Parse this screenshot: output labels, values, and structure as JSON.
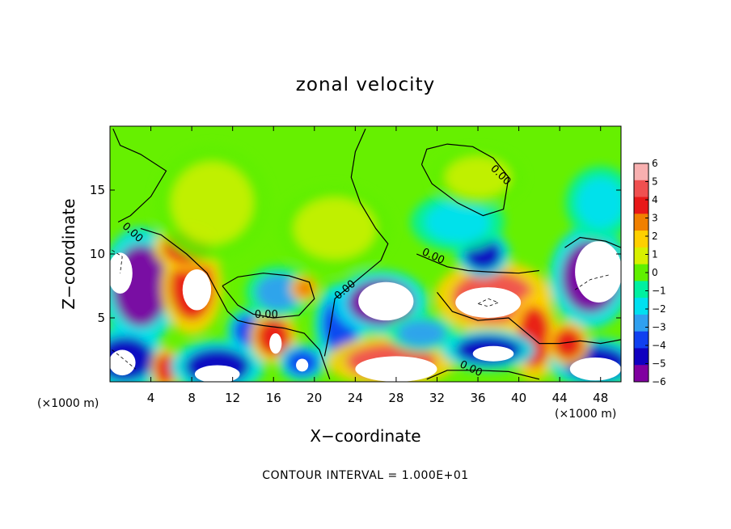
{
  "chart_data": {
    "type": "heatmap",
    "title": "zonal velocity",
    "xlabel": "X−coordinate",
    "ylabel": "Z−coordinate",
    "x_unit_left": "(×1000 m)",
    "x_unit_right": "(×1000 m)",
    "xlim": [
      0,
      50
    ],
    "ylim": [
      0,
      20
    ],
    "x_ticks": [
      4,
      8,
      12,
      16,
      20,
      24,
      28,
      32,
      36,
      40,
      44,
      48
    ],
    "x_tick_labels": [
      "4",
      "8",
      "12",
      "16",
      "20",
      "24",
      "28",
      "32",
      "36",
      "40",
      "44",
      "48"
    ],
    "y_ticks": [
      5,
      10,
      15
    ],
    "y_tick_labels": [
      "5",
      "10",
      "15"
    ],
    "colorbar": {
      "min": -6,
      "max": 6,
      "labels": [
        "6",
        "5",
        "4",
        "3",
        "2",
        "1",
        "0",
        "−1",
        "−2",
        "−3",
        "−4",
        "−5",
        "−6"
      ],
      "colors": [
        "#f8b0b0",
        "#f05050",
        "#e81818",
        "#f08000",
        "#ffd000",
        "#d8f000",
        "#60f000",
        "#00f0a0",
        "#00e0f0",
        "#30a0f0",
        "#1040f0",
        "#1000c0",
        "#8000a0"
      ]
    },
    "contour_interval": "CONTOUR INTERVAL = 1.000E+01",
    "contour_labels": [
      "0.00",
      "0.00",
      "0.00",
      "0.00",
      "0.00",
      "0.00"
    ],
    "contour_label_positions": [
      {
        "x": 2.0,
        "y": 11.5
      },
      {
        "x": 15.3,
        "y": 5.0
      },
      {
        "x": 23.2,
        "y": 7.0
      },
      {
        "x": 31.5,
        "y": 9.6
      },
      {
        "x": 38.0,
        "y": 16.0
      },
      {
        "x": 35.2,
        "y": 0.8
      }
    ],
    "blobs": [
      {
        "x": 3.0,
        "y": 7.5,
        "rx": 3.4,
        "ry": 4.0,
        "v": -5.5
      },
      {
        "x": 1.5,
        "y": 1.8,
        "rx": 3.5,
        "ry": 2.2,
        "v": -5.0
      },
      {
        "x": 8.0,
        "y": 7.4,
        "rx": 2.6,
        "ry": 3.2,
        "v": 4.2
      },
      {
        "x": 7.5,
        "y": 10.5,
        "rx": 2.8,
        "ry": 1.6,
        "v": 4.0
      },
      {
        "x": 5.4,
        "y": 1.0,
        "rx": 1.2,
        "ry": 1.5,
        "v": 4.0
      },
      {
        "x": 10.5,
        "y": 1.2,
        "rx": 4.0,
        "ry": 1.8,
        "v": -5.0
      },
      {
        "x": 13.5,
        "y": 4.0,
        "rx": 1.8,
        "ry": 1.5,
        "v": -4.0
      },
      {
        "x": 16.0,
        "y": 3.5,
        "rx": 2.0,
        "ry": 1.8,
        "v": 4.0
      },
      {
        "x": 16.5,
        "y": 7.0,
        "rx": 2.8,
        "ry": 1.8,
        "v": -3.0
      },
      {
        "x": 18.8,
        "y": 1.5,
        "rx": 2.0,
        "ry": 1.3,
        "v": -4.0
      },
      {
        "x": 19.0,
        "y": 7.3,
        "rx": 1.2,
        "ry": 0.9,
        "v": 3.5
      },
      {
        "x": 22.5,
        "y": 4.5,
        "rx": 2.2,
        "ry": 2.8,
        "v": -3.5
      },
      {
        "x": 26.5,
        "y": 6.2,
        "rx": 4.0,
        "ry": 2.2,
        "v": -5.5
      },
      {
        "x": 27.5,
        "y": 1.6,
        "rx": 5.5,
        "ry": 1.7,
        "v": 5.0
      },
      {
        "x": 30.5,
        "y": 3.8,
        "rx": 3.0,
        "ry": 1.3,
        "v": -3.0
      },
      {
        "x": 37.5,
        "y": 6.6,
        "rx": 5.0,
        "ry": 2.5,
        "v": 4.6
      },
      {
        "x": 41.5,
        "y": 3.5,
        "rx": 2.0,
        "ry": 3.0,
        "v": 4.0
      },
      {
        "x": 37.0,
        "y": 2.5,
        "rx": 4.0,
        "ry": 1.4,
        "v": -4.8
      },
      {
        "x": 36.5,
        "y": 10.0,
        "rx": 2.3,
        "ry": 1.6,
        "v": -4.5
      },
      {
        "x": 34.0,
        "y": 12.5,
        "rx": 4.0,
        "ry": 2.0,
        "v": -2.2
      },
      {
        "x": 36.0,
        "y": 16.0,
        "rx": 4.0,
        "ry": 2.0,
        "v": 1.0
      },
      {
        "x": 47.0,
        "y": 8.2,
        "rx": 3.5,
        "ry": 3.5,
        "v": -5.5
      },
      {
        "x": 47.5,
        "y": 1.5,
        "rx": 4.0,
        "ry": 1.7,
        "v": -5.0
      },
      {
        "x": 44.8,
        "y": 3.0,
        "rx": 1.8,
        "ry": 1.5,
        "v": 4.0
      },
      {
        "x": 48.0,
        "y": 14.0,
        "rx": 3.0,
        "ry": 2.5,
        "v": -2.0
      },
      {
        "x": 10.0,
        "y": 14.0,
        "rx": 5.0,
        "ry": 4.0,
        "v": 0.9
      },
      {
        "x": 22.0,
        "y": 12.0,
        "rx": 5.0,
        "ry": 3.0,
        "v": 0.6
      }
    ],
    "white_regions": [
      {
        "x": 8.5,
        "y": 7.2,
        "rx": 1.4,
        "ry": 1.6
      },
      {
        "x": 1.0,
        "y": 8.5,
        "rx": 1.2,
        "ry": 1.6
      },
      {
        "x": 27.0,
        "y": 6.3,
        "rx": 2.7,
        "ry": 1.5
      },
      {
        "x": 37.0,
        "y": 6.2,
        "rx": 3.2,
        "ry": 1.2
      },
      {
        "x": 28.0,
        "y": 1.0,
        "rx": 4.0,
        "ry": 1.0
      },
      {
        "x": 47.8,
        "y": 8.6,
        "rx": 2.3,
        "ry": 2.4
      },
      {
        "x": 10.5,
        "y": 0.6,
        "rx": 2.2,
        "ry": 0.7
      },
      {
        "x": 37.5,
        "y": 2.2,
        "rx": 2.0,
        "ry": 0.6
      },
      {
        "x": 18.8,
        "y": 1.3,
        "rx": 0.6,
        "ry": 0.5
      },
      {
        "x": 16.2,
        "y": 3.0,
        "rx": 0.6,
        "ry": 0.8
      },
      {
        "x": 1.2,
        "y": 1.5,
        "rx": 1.3,
        "ry": 1.0
      },
      {
        "x": 47.5,
        "y": 1.0,
        "rx": 2.5,
        "ry": 0.9
      }
    ]
  }
}
